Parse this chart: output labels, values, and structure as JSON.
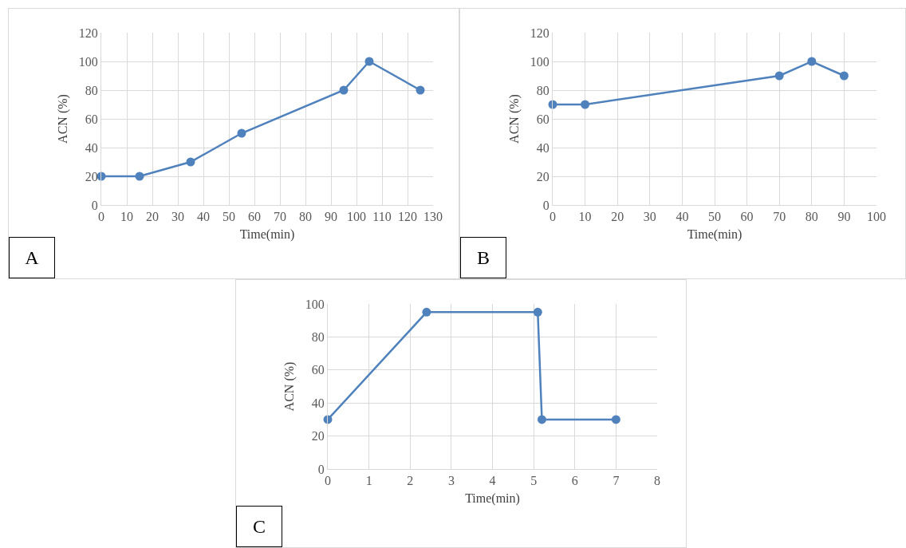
{
  "chart_data": [
    {
      "type": "line",
      "xlabel": "Time(min)",
      "ylabel": "ACN (%)",
      "annotations": [
        "A"
      ],
      "x": [
        0,
        15,
        35,
        55,
        95,
        105,
        125
      ],
      "series": [
        {
          "color": "#4f81bd",
          "values": [
            20,
            20,
            30,
            50,
            80,
            100,
            80
          ]
        }
      ],
      "xlim": [
        0,
        130
      ],
      "xticks": [
        0,
        10,
        20,
        30,
        40,
        50,
        60,
        70,
        80,
        90,
        100,
        110,
        120,
        130
      ],
      "ylim": [
        0,
        120
      ],
      "yticks": [
        0,
        20,
        40,
        60,
        80,
        100,
        120
      ],
      "grid": true,
      "marker": "circle",
      "line_style": "solid"
    },
    {
      "type": "line",
      "xlabel": "Time(min)",
      "ylabel": "ACN (%)",
      "annotations": [
        "B"
      ],
      "x": [
        0,
        10,
        70,
        80,
        90
      ],
      "series": [
        {
          "color": "#4f81bd",
          "values": [
            70,
            70,
            90,
            100,
            90
          ]
        }
      ],
      "xlim": [
        0,
        100
      ],
      "xticks": [
        0,
        10,
        20,
        30,
        40,
        50,
        60,
        70,
        80,
        90,
        100
      ],
      "ylim": [
        0,
        120
      ],
      "yticks": [
        0,
        20,
        40,
        60,
        80,
        100,
        120
      ],
      "grid": true,
      "marker": "circle",
      "line_style": "solid"
    },
    {
      "type": "line",
      "xlabel": "Time(min)",
      "ylabel": "ACN (%)",
      "annotations": [
        "C"
      ],
      "x": [
        0,
        2.4,
        5.1,
        5.2,
        7
      ],
      "series": [
        {
          "color": "#4f81bd",
          "values": [
            30,
            95,
            95,
            30,
            30
          ]
        }
      ],
      "xlim": [
        0,
        8
      ],
      "xticks": [
        0,
        1,
        2,
        3,
        4,
        5,
        6,
        7,
        8
      ],
      "ylim": [
        0,
        100
      ],
      "yticks": [
        0,
        20,
        40,
        60,
        80,
        100
      ],
      "grid": true,
      "marker": "circle",
      "line_style": "solid"
    }
  ]
}
